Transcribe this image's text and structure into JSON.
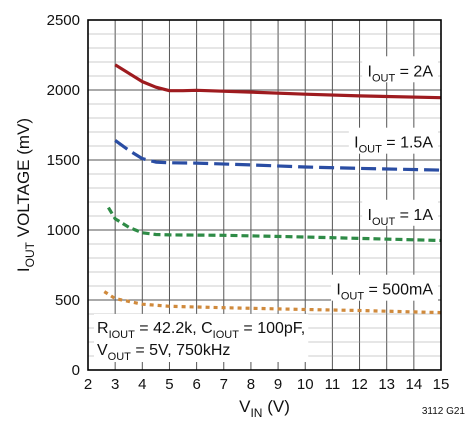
{
  "chart_data": {
    "type": "line",
    "title": "",
    "xlabel": {
      "main": "V",
      "sub": "IN",
      "unit": " (V)"
    },
    "ylabel": {
      "pre": "I",
      "sub": "OUT",
      "post": " VOLTAGE (mV)"
    },
    "xlim": [
      2,
      15
    ],
    "ylim": [
      0,
      2500
    ],
    "x_ticks": [
      2,
      3,
      4,
      5,
      6,
      7,
      8,
      9,
      10,
      11,
      12,
      13,
      14,
      15
    ],
    "y_ticks": [
      0,
      500,
      1000,
      1500,
      2000,
      2500
    ],
    "grid": true,
    "series": [
      {
        "name": "IOUT = 2A",
        "label": {
          "main": "I",
          "sub": "OUT",
          "rest": " = 2A"
        },
        "color": "#9e1b1f",
        "dash": "solid",
        "points": [
          [
            3,
            2180
          ],
          [
            3.5,
            2120
          ],
          [
            4,
            2060
          ],
          [
            4.5,
            2020
          ],
          [
            5,
            1995
          ],
          [
            5.5,
            1995
          ],
          [
            6,
            1998
          ],
          [
            8,
            1985
          ],
          [
            10,
            1970
          ],
          [
            12,
            1958
          ],
          [
            15,
            1945
          ]
        ]
      },
      {
        "name": "IOUT = 1.5A",
        "label": {
          "main": "I",
          "sub": "OUT",
          "rest": " = 1.5A"
        },
        "color": "#2a4da3",
        "dash": "long",
        "points": [
          [
            3,
            1640
          ],
          [
            3.5,
            1570
          ],
          [
            4,
            1510
          ],
          [
            4.5,
            1485
          ],
          [
            5,
            1480
          ],
          [
            6,
            1478
          ],
          [
            8,
            1465
          ],
          [
            10,
            1450
          ],
          [
            12,
            1440
          ],
          [
            15,
            1428
          ]
        ]
      },
      {
        "name": "IOUT = 1A",
        "label": {
          "main": "I",
          "sub": "OUT",
          "rest": " = 1A"
        },
        "color": "#2e8b46",
        "dash": "medium",
        "points": [
          [
            2.75,
            1160
          ],
          [
            3,
            1080
          ],
          [
            3.5,
            1020
          ],
          [
            4,
            980
          ],
          [
            4.5,
            968
          ],
          [
            5,
            965
          ],
          [
            7,
            962
          ],
          [
            10,
            950
          ],
          [
            12,
            940
          ],
          [
            15,
            925
          ]
        ]
      },
      {
        "name": "IOUT = 500mA",
        "label": {
          "main": "I",
          "sub": "OUT",
          "rest": " = 500mA"
        },
        "color": "#d08a3c",
        "dash": "short",
        "points": [
          [
            2.6,
            560
          ],
          [
            3,
            510
          ],
          [
            3.5,
            490
          ],
          [
            4,
            470
          ],
          [
            5,
            455
          ],
          [
            7,
            445
          ],
          [
            10,
            432
          ],
          [
            12,
            425
          ],
          [
            15,
            410
          ]
        ]
      }
    ],
    "annotations": {
      "conditions_line1": [
        {
          "t": "R",
          "sub": false
        },
        {
          "t": "IOUT",
          "sub": true
        },
        {
          "t": " = 42.2k, C",
          "sub": false
        },
        {
          "t": "IOUT",
          "sub": true
        },
        {
          "t": " = 100pF,",
          "sub": false
        }
      ],
      "conditions_line2": [
        {
          "t": "V",
          "sub": false
        },
        {
          "t": "OUT",
          "sub": true
        },
        {
          "t": " = 5V, 750kHz",
          "sub": false
        }
      ],
      "figure_code": "3112 G21"
    }
  }
}
